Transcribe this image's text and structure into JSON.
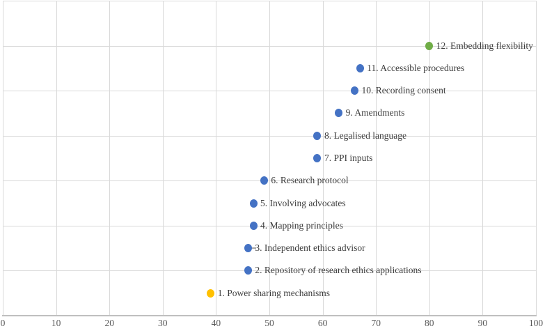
{
  "chart_data": {
    "type": "scatter",
    "title": "",
    "xlabel": "",
    "ylabel": "",
    "xlim": [
      0,
      100
    ],
    "ylim": [
      0,
      14
    ],
    "grid": true,
    "legend": "none",
    "x_axis": {
      "tick_step": 10,
      "tick_labels": [
        "0",
        "10",
        "20",
        "30",
        "40",
        "50",
        "60",
        "70",
        "80",
        "90",
        "100"
      ]
    },
    "y_axis": {
      "gridline_step": 2,
      "tick_labels": []
    },
    "points": [
      {
        "id": 1,
        "label": "1. Power sharing mechanisms",
        "x": 39,
        "y": 1,
        "color": "#FFC000",
        "color_name": "yellow",
        "leader_dash": false
      },
      {
        "id": 2,
        "label": "2. Repository of research ethics applications",
        "x": 46,
        "y": 2,
        "color": "#4472C4",
        "color_name": "blue",
        "leader_dash": false
      },
      {
        "id": 3,
        "label": "3. Independent ethics advisor",
        "x": 46,
        "y": 3,
        "color": "#4472C4",
        "color_name": "blue",
        "leader_dash": true
      },
      {
        "id": 4,
        "label": "4. Mapping principles",
        "x": 47,
        "y": 4,
        "color": "#4472C4",
        "color_name": "blue",
        "leader_dash": false
      },
      {
        "id": 5,
        "label": "5. Involving advocates",
        "x": 47,
        "y": 5,
        "color": "#4472C4",
        "color_name": "blue",
        "leader_dash": false
      },
      {
        "id": 6,
        "label": "6. Research protocol",
        "x": 49,
        "y": 6,
        "color": "#4472C4",
        "color_name": "blue",
        "leader_dash": false
      },
      {
        "id": 7,
        "label": "7. PPI inputs",
        "x": 59,
        "y": 7,
        "color": "#4472C4",
        "color_name": "blue",
        "leader_dash": false
      },
      {
        "id": 8,
        "label": "8. Legalised language",
        "x": 59,
        "y": 8,
        "color": "#4472C4",
        "color_name": "blue",
        "leader_dash": false
      },
      {
        "id": 9,
        "label": "9. Amendments",
        "x": 63,
        "y": 9,
        "color": "#4472C4",
        "color_name": "blue",
        "leader_dash": false
      },
      {
        "id": 10,
        "label": "10. Recording consent",
        "x": 66,
        "y": 10,
        "color": "#4472C4",
        "color_name": "blue",
        "leader_dash": false
      },
      {
        "id": 11,
        "label": "11. Accessible procedures",
        "x": 67,
        "y": 11,
        "color": "#4472C4",
        "color_name": "blue",
        "leader_dash": false
      },
      {
        "id": 12,
        "label": "12. Embedding flexibility",
        "x": 80,
        "y": 12,
        "color": "#70AD47",
        "color_name": "green",
        "leader_dash": false
      }
    ],
    "colors": {
      "default_point": "#4472C4",
      "highlight_green": "#70AD47",
      "highlight_yellow": "#FFC000",
      "gridline": "#D9D9D9",
      "axis_line": "#BFBFBF",
      "point_label_text": "#3D3D3D",
      "tick_label_text": "#595959"
    }
  }
}
